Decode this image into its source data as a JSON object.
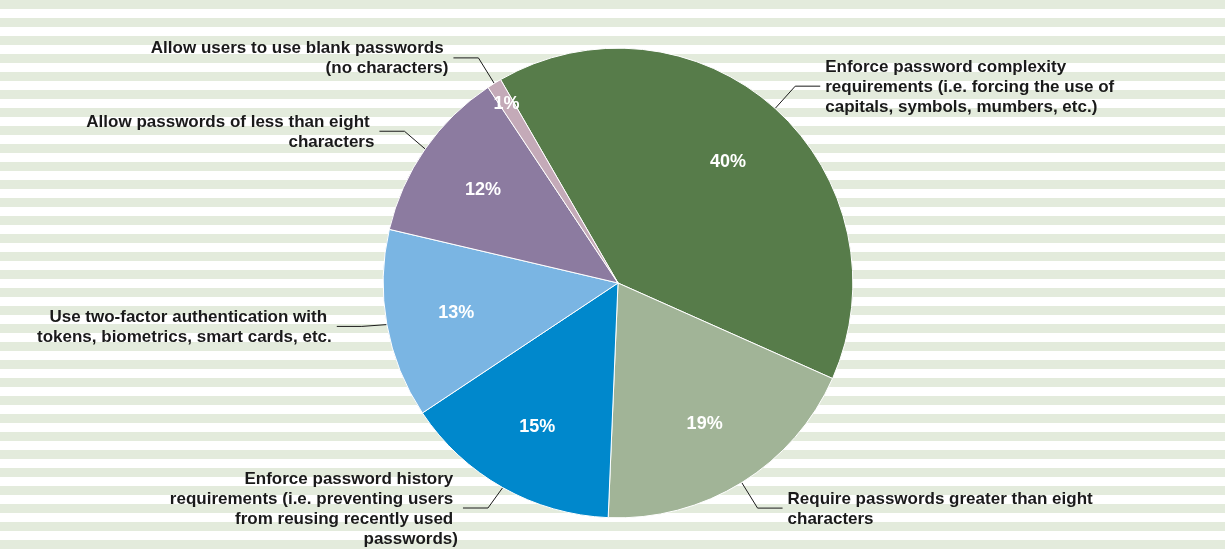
{
  "chart_data": {
    "type": "pie",
    "categories": [
      "Enforce password complexity requirements (i.e. forcing the use of capitals, symbols, mumbers, etc.)",
      "Require passwords greater than eight characters",
      "Enforce password history requirements (i.e. preventing users from reusing recently used passwords)",
      "Use two-factor authentication with tokens, biometrics, smart cards, etc.",
      "Allow passwords of less than eight characters",
      "Allow users to use blank passwords (no characters)"
    ],
    "values": [
      40,
      19,
      15,
      13,
      12,
      1
    ],
    "colors": [
      "#577c4a",
      "#a1b497",
      "#0088cc",
      "#7ab5e3",
      "#8c7ba0",
      "#c4aab8"
    ],
    "value_labels": [
      "40%",
      "19%",
      "15%",
      "13%",
      "12%",
      "1%"
    ]
  }
}
